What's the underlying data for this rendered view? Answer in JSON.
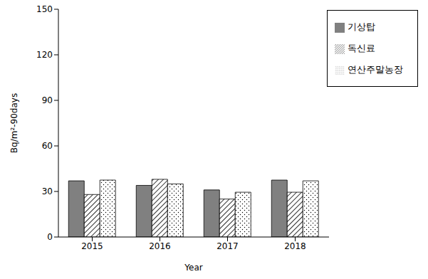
{
  "chart_data": {
    "type": "bar",
    "x_label": "Year",
    "y_label": "Bq/m²-90days",
    "categories": [
      "2015",
      "2016",
      "2017",
      "2018"
    ],
    "series": [
      {
        "name": "기상탑",
        "color": "#808080",
        "values": [
          37,
          34,
          31,
          37.5
        ]
      },
      {
        "name": "독신료",
        "color": "#000000",
        "values": [
          28,
          38,
          25,
          29.5
        ]
      },
      {
        "name": "연산주말농장",
        "color": "#000000",
        "values": [
          37.5,
          35,
          29.5,
          37
        ]
      }
    ],
    "ylim": [
      0,
      150
    ],
    "yticks": [
      0,
      30,
      60,
      90,
      120,
      150
    ],
    "grid": false,
    "legend": "upper right"
  }
}
